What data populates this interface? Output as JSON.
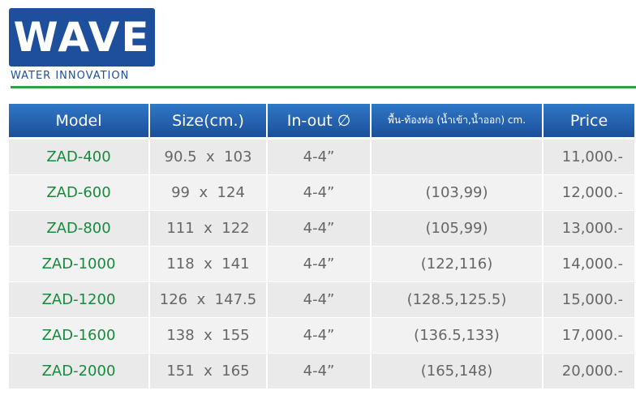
{
  "header": {
    "logo": "WAVE",
    "tagline": "WATER INNOVATION"
  },
  "table": {
    "columns": [
      "Model",
      "Size(cm.)",
      "In-out ∅",
      "พื้น-ท้องท่อ (น้ำเข้า,น้ำออก) cm.",
      "Price"
    ],
    "rows": [
      [
        "ZAD-400",
        "90.5  x  103",
        "4-4”",
        null,
        "11,000.-"
      ],
      [
        "ZAD-600",
        "99  x  124",
        "4-4”",
        "(103,99)",
        "12,000.-"
      ],
      [
        "ZAD-800",
        "111  x  122",
        "4-4”",
        "(105,99)",
        "13,000.-"
      ],
      [
        "ZAD-1000",
        "118  x  141",
        "4-4”",
        "(122,116)",
        "14,000.-"
      ],
      [
        "ZAD-1200",
        "126  x  147.5",
        "4-4”",
        "(128.5,125.5)",
        "15,000.-"
      ],
      [
        "ZAD-1600",
        "138  x  155",
        "4-4”",
        "(136.5,133)",
        "17,000.-"
      ],
      [
        "ZAD-2000",
        "151  x  165",
        "4-4”",
        "(165,148)",
        "20,000.-"
      ]
    ]
  }
}
